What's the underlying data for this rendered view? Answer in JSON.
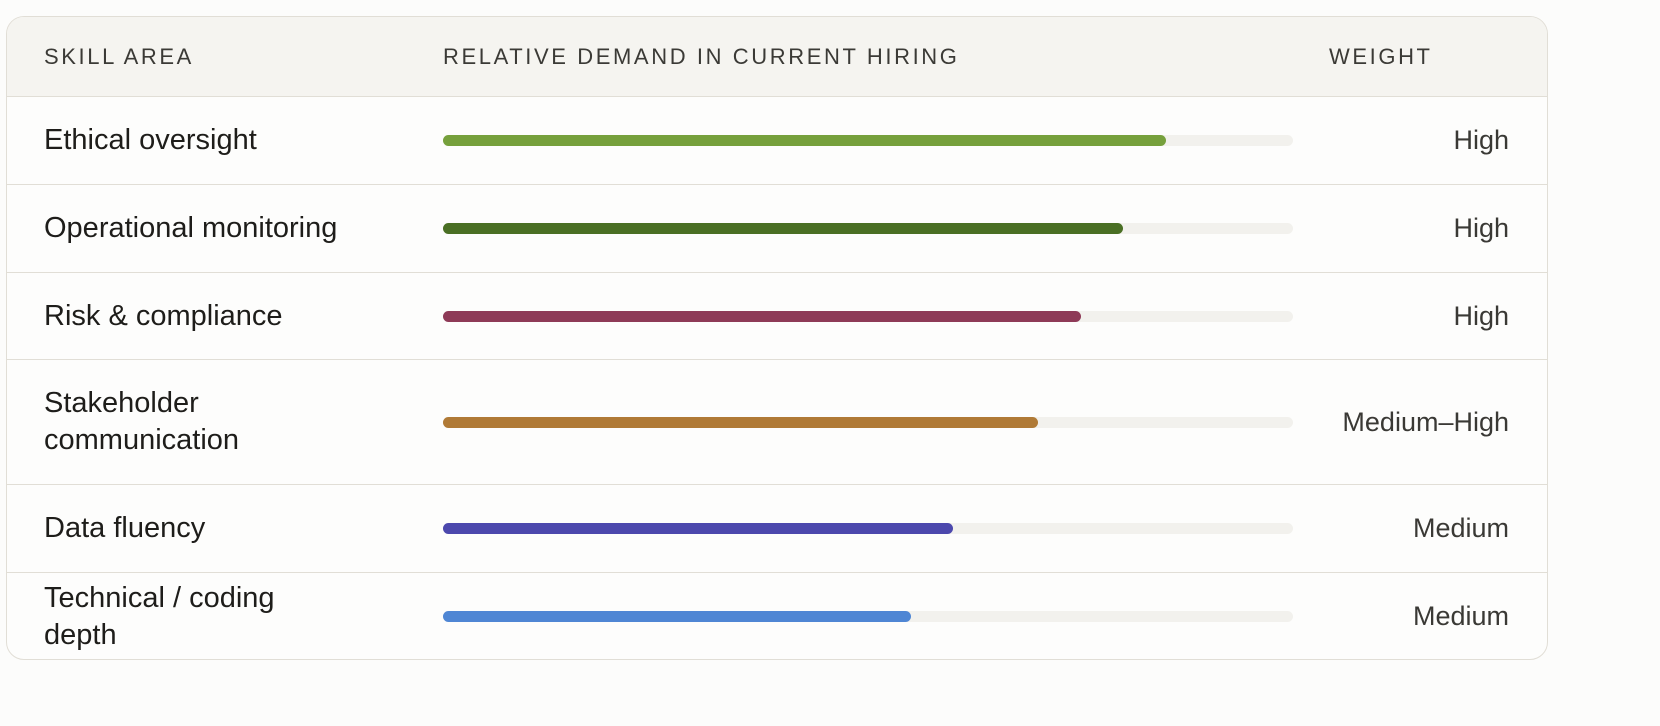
{
  "table": {
    "headers": {
      "skill": "Skill Area",
      "demand": "Relative demand in current hiring",
      "weight": "Weight"
    },
    "rows": [
      {
        "skill": "Ethical oversight",
        "weight": "High",
        "demand_fraction": 0.85,
        "color": "#76a03c"
      },
      {
        "skill": "Operational monitoring",
        "weight": "High",
        "demand_fraction": 0.8,
        "color": "#4a6f24"
      },
      {
        "skill": "Risk & compliance",
        "weight": "High",
        "demand_fraction": 0.75,
        "color": "#8e3a57"
      },
      {
        "skill": "Stakeholder communication",
        "weight": "Medium–High",
        "demand_fraction": 0.7,
        "color": "#b07a36"
      },
      {
        "skill": "Data fluency",
        "weight": "Medium",
        "demand_fraction": 0.6,
        "color": "#4c48ad"
      },
      {
        "skill": "Technical / coding depth",
        "weight": "Medium",
        "demand_fraction": 0.55,
        "color": "#4f86d4"
      }
    ]
  }
}
